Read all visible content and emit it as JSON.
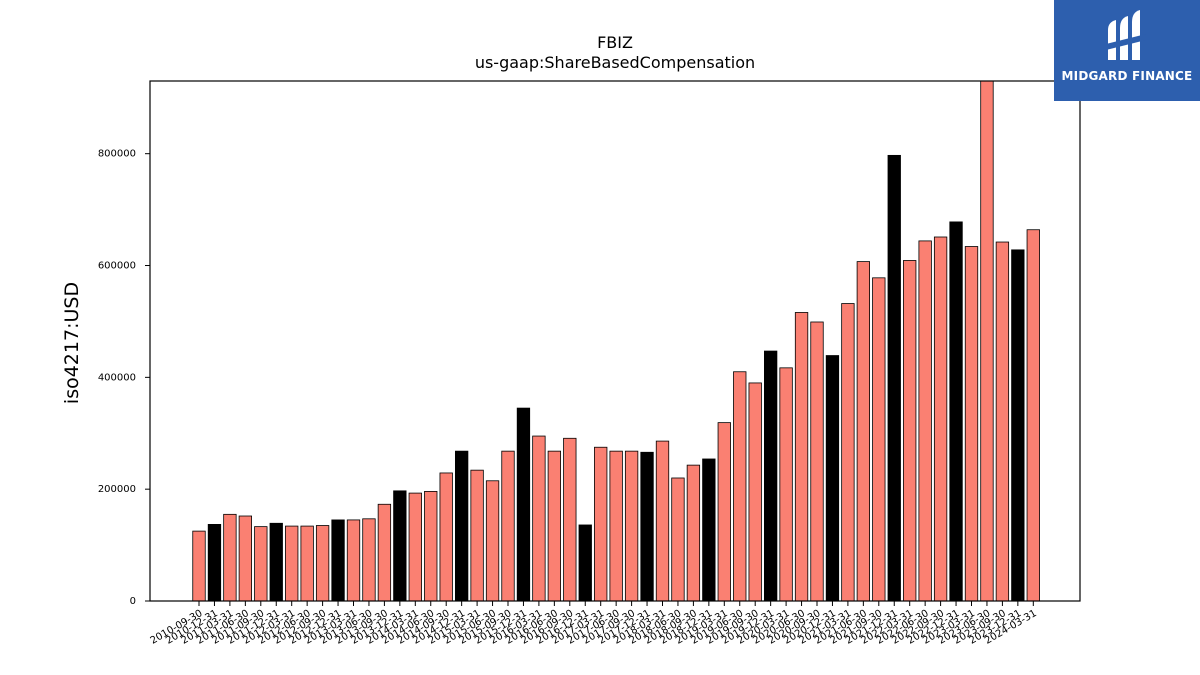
{
  "chart_data": {
    "type": "bar",
    "title": "FBIZ",
    "subtitle": "us-gaap:ShareBasedCompensation",
    "xlabel": "",
    "ylabel": "iso4217:USD",
    "ylim": [
      0,
      930000
    ],
    "yticks": [
      0,
      200000,
      400000,
      600000,
      800000
    ],
    "grid": false,
    "colors": {
      "default": "#fa8072",
      "highlight": "#000000",
      "edge": "#000000"
    },
    "categories": [
      "2010-09-30",
      "2010-12-31",
      "2011-03-31",
      "2011-06-30",
      "2011-09-30",
      "2011-12-31",
      "2012-03-31",
      "2012-06-30",
      "2012-09-30",
      "2012-12-31",
      "2013-03-31",
      "2013-06-30",
      "2013-09-30",
      "2013-12-31",
      "2014-03-31",
      "2014-06-30",
      "2014-09-30",
      "2014-12-31",
      "2015-03-31",
      "2015-06-30",
      "2015-09-30",
      "2015-12-31",
      "2016-03-31",
      "2016-06-30",
      "2016-09-30",
      "2016-12-31",
      "2017-03-31",
      "2017-06-30",
      "2017-09-30",
      "2017-12-31",
      "2018-03-31",
      "2018-06-30",
      "2018-09-30",
      "2018-12-31",
      "2019-03-31",
      "2019-06-30",
      "2019-09-30",
      "2019-12-31",
      "2020-03-31",
      "2020-06-30",
      "2020-09-30",
      "2020-12-31",
      "2021-03-31",
      "2021-06-30",
      "2021-09-30",
      "2021-12-31",
      "2022-03-31",
      "2022-06-30",
      "2022-09-30",
      "2022-12-31",
      "2023-03-31",
      "2023-06-30",
      "2023-09-30",
      "2023-12-31",
      "2024-03-31"
    ],
    "values": [
      125000,
      137000,
      155000,
      152000,
      133000,
      139000,
      134000,
      134000,
      135000,
      145000,
      145000,
      147000,
      173000,
      197000,
      193000,
      196000,
      229000,
      268000,
      234000,
      215000,
      268000,
      345000,
      295000,
      268000,
      291000,
      136000,
      275000,
      268000,
      268000,
      266000,
      286000,
      220000,
      243000,
      254000,
      319000,
      410000,
      390000,
      447000,
      417000,
      516000,
      499000,
      439000,
      532000,
      607000,
      578000,
      797000,
      609000,
      644000,
      651000,
      678000,
      634000,
      935000,
      642000,
      628000,
      664000
    ],
    "highlighted": [
      false,
      true,
      false,
      false,
      false,
      true,
      false,
      false,
      false,
      true,
      false,
      false,
      false,
      true,
      false,
      false,
      false,
      true,
      false,
      false,
      false,
      true,
      false,
      false,
      false,
      true,
      false,
      false,
      false,
      true,
      false,
      false,
      false,
      true,
      false,
      false,
      false,
      true,
      false,
      false,
      false,
      true,
      false,
      false,
      false,
      true,
      false,
      false,
      false,
      true,
      false,
      false,
      false,
      true,
      false
    ]
  },
  "branding": {
    "logo_text": "MIDGARD FINANCE",
    "logo_icon": "midgard-logo-icon"
  }
}
